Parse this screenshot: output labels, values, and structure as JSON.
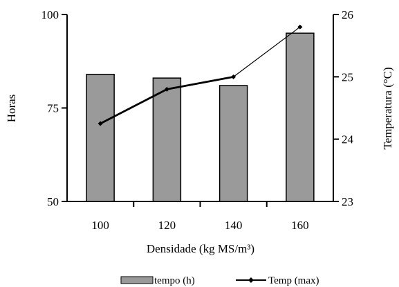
{
  "chart_data": {
    "type": "bar",
    "categories": [
      "100",
      "120",
      "140",
      "160"
    ],
    "series": [
      {
        "name": "tempo (h)",
        "type": "bar",
        "axis": "left",
        "values": [
          84,
          83,
          81,
          95
        ],
        "color": "#9a9a9a"
      },
      {
        "name": "Temp (max)",
        "type": "line",
        "axis": "right",
        "values": [
          24.25,
          24.8,
          25.0,
          25.8
        ],
        "color": "#000000"
      }
    ],
    "xlabel": "Densidade (kg MS/m³)",
    "ylabel": "Horas",
    "y2label": "Temperatura (°C)",
    "ylim": [
      50,
      100
    ],
    "y2lim": [
      23,
      26
    ],
    "yticks": [
      "50",
      "75",
      "100"
    ],
    "y2ticks": [
      "23",
      "24",
      "25",
      "26"
    ],
    "grid": false,
    "legend": "bottom"
  }
}
